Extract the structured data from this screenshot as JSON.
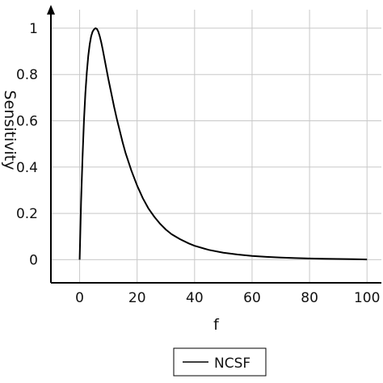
{
  "chart_data": {
    "type": "line",
    "title": "",
    "xlabel": "f",
    "ylabel": "Sensitivity",
    "xlim": [
      -10,
      105
    ],
    "ylim": [
      -0.1,
      1.08
    ],
    "x_ticks": [
      0,
      20,
      40,
      60,
      80,
      100
    ],
    "y_ticks": [
      0,
      0.2,
      0.4,
      0.6,
      0.8,
      1
    ],
    "x_tick_labels": [
      "0",
      "20",
      "40",
      "60",
      "80",
      "100"
    ],
    "y_tick_labels": [
      "0",
      "0.2",
      "0.4",
      "0.6",
      "0.8",
      "1"
    ],
    "grid": true,
    "legend": {
      "position": "bottom-center",
      "entries": [
        "NCSF"
      ]
    },
    "series": [
      {
        "name": "NCSF",
        "color": "#000000",
        "x": [
          0,
          0.5,
          1,
          1.5,
          2,
          2.5,
          3,
          3.5,
          4,
          4.5,
          5,
          5.5,
          6,
          6.5,
          7,
          7.5,
          8,
          9,
          10,
          11,
          12,
          13,
          14,
          15,
          16,
          18,
          20,
          22,
          24,
          26,
          28,
          30,
          32,
          35,
          38,
          40,
          45,
          50,
          55,
          60,
          65,
          70,
          75,
          80,
          85,
          90,
          95,
          100
        ],
        "y": [
          0,
          0.25,
          0.44,
          0.6,
          0.72,
          0.81,
          0.88,
          0.93,
          0.965,
          0.985,
          0.995,
          1.0,
          0.997,
          0.985,
          0.965,
          0.94,
          0.91,
          0.845,
          0.78,
          0.72,
          0.66,
          0.605,
          0.555,
          0.505,
          0.46,
          0.385,
          0.32,
          0.265,
          0.22,
          0.185,
          0.155,
          0.13,
          0.11,
          0.088,
          0.07,
          0.06,
          0.042,
          0.03,
          0.022,
          0.016,
          0.012,
          0.009,
          0.007,
          0.005,
          0.004,
          0.003,
          0.002,
          0.001
        ]
      }
    ]
  }
}
